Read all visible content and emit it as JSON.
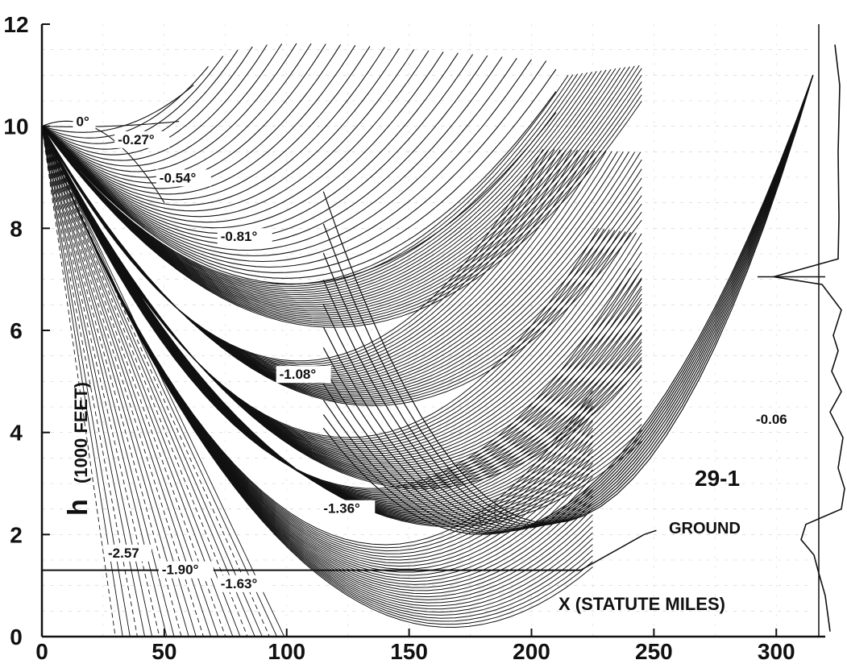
{
  "chart_data": {
    "type": "line",
    "title": "",
    "xlabel": "X (STATUTE MILES)",
    "ylabel_symbol": "h",
    "ylabel_unit": "(1000 FEET)",
    "xlim": [
      0,
      320
    ],
    "ylim": [
      0,
      12
    ],
    "x_ticks": [
      0,
      50,
      100,
      150,
      200,
      250,
      300
    ],
    "y_ticks": [
      0,
      2,
      4,
      6,
      8,
      10,
      12
    ],
    "source_height_kft": 10,
    "ground_height_kft": 1.3,
    "ground_label": "GROUND",
    "case_label": "29-1",
    "profile_label": "-0.06",
    "rays": [
      {
        "label": "0°",
        "turn_x": 10,
        "turn_h": 10.2
      },
      {
        "label": "-0.27°",
        "turn_x": 35,
        "turn_h": 9.6
      },
      {
        "label": "-0.54°",
        "turn_x": 55,
        "turn_h": 8.9
      },
      {
        "label": "-0.81°",
        "turn_x": 80,
        "turn_h": 7.3
      },
      {
        "label": "-1.08°",
        "turn_x": 110,
        "turn_h": 5.0
      },
      {
        "label": "-1.36°",
        "turn_x": 135,
        "turn_h": 2.8
      },
      {
        "label": "-1.63°",
        "turn_x": 140,
        "turn_h": 1.9
      },
      {
        "label": "-1.90°",
        "turn_x": 150,
        "turn_h": 0.8
      },
      {
        "label": "-2.57"
      }
    ]
  }
}
